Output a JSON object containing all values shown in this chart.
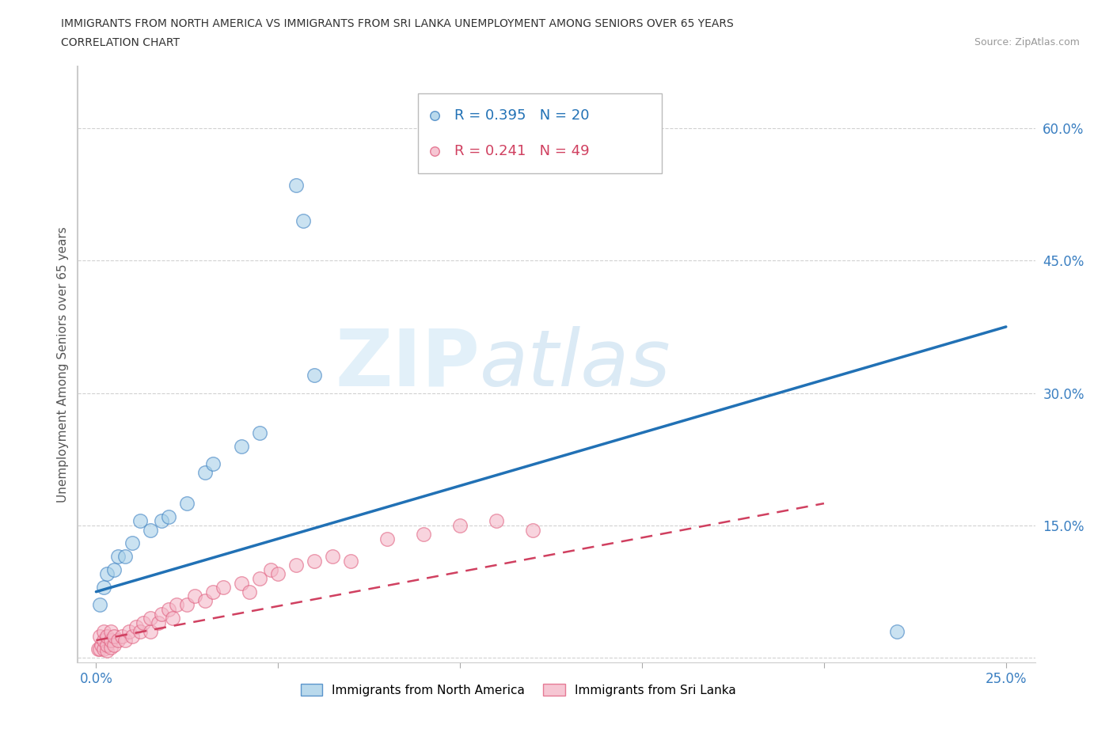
{
  "title_line1": "IMMIGRANTS FROM NORTH AMERICA VS IMMIGRANTS FROM SRI LANKA UNEMPLOYMENT AMONG SENIORS OVER 65 YEARS",
  "title_line2": "CORRELATION CHART",
  "source": "Source: ZipAtlas.com",
  "ylabel": "Unemployment Among Seniors over 65 years",
  "watermark_zip": "ZIP",
  "watermark_atlas": "atlas",
  "legend_blue_R": "R = 0.395",
  "legend_blue_N": "N = 20",
  "legend_pink_R": "R = 0.241",
  "legend_pink_N": "N = 49",
  "xlim": [
    -0.005,
    0.258
  ],
  "ylim": [
    -0.005,
    0.67
  ],
  "color_blue": "#a8d0e8",
  "color_pink": "#f4b8c8",
  "color_blue_dark": "#3a7fc1",
  "color_pink_dark": "#e06080",
  "color_blue_line": "#2171b5",
  "color_pink_line": "#d04060",
  "north_america_x": [
    0.001,
    0.002,
    0.003,
    0.005,
    0.006,
    0.008,
    0.01,
    0.012,
    0.015,
    0.018,
    0.02,
    0.025,
    0.03,
    0.032,
    0.04,
    0.045,
    0.055,
    0.057,
    0.06,
    0.22
  ],
  "north_america_y": [
    0.06,
    0.08,
    0.095,
    0.1,
    0.115,
    0.115,
    0.13,
    0.155,
    0.145,
    0.155,
    0.16,
    0.175,
    0.21,
    0.22,
    0.24,
    0.255,
    0.535,
    0.495,
    0.32,
    0.03
  ],
  "sri_lanka_x": [
    0.0005,
    0.001,
    0.0015,
    0.001,
    0.002,
    0.002,
    0.002,
    0.003,
    0.003,
    0.003,
    0.004,
    0.004,
    0.004,
    0.005,
    0.005,
    0.006,
    0.007,
    0.008,
    0.009,
    0.01,
    0.011,
    0.012,
    0.013,
    0.015,
    0.015,
    0.017,
    0.018,
    0.02,
    0.021,
    0.022,
    0.025,
    0.027,
    0.03,
    0.032,
    0.035,
    0.04,
    0.042,
    0.045,
    0.048,
    0.05,
    0.055,
    0.06,
    0.065,
    0.07,
    0.08,
    0.09,
    0.1,
    0.11,
    0.12
  ],
  "sri_lanka_y": [
    0.01,
    0.01,
    0.015,
    0.025,
    0.01,
    0.02,
    0.03,
    0.008,
    0.015,
    0.025,
    0.012,
    0.02,
    0.03,
    0.015,
    0.025,
    0.02,
    0.025,
    0.02,
    0.03,
    0.025,
    0.035,
    0.03,
    0.04,
    0.03,
    0.045,
    0.04,
    0.05,
    0.055,
    0.045,
    0.06,
    0.06,
    0.07,
    0.065,
    0.075,
    0.08,
    0.085,
    0.075,
    0.09,
    0.1,
    0.095,
    0.105,
    0.11,
    0.115,
    0.11,
    0.135,
    0.14,
    0.15,
    0.155,
    0.145
  ],
  "blue_line_x": [
    0.0,
    0.25
  ],
  "blue_line_y": [
    0.075,
    0.375
  ],
  "pink_line_x": [
    0.0,
    0.2
  ],
  "pink_line_y": [
    0.02,
    0.175
  ]
}
